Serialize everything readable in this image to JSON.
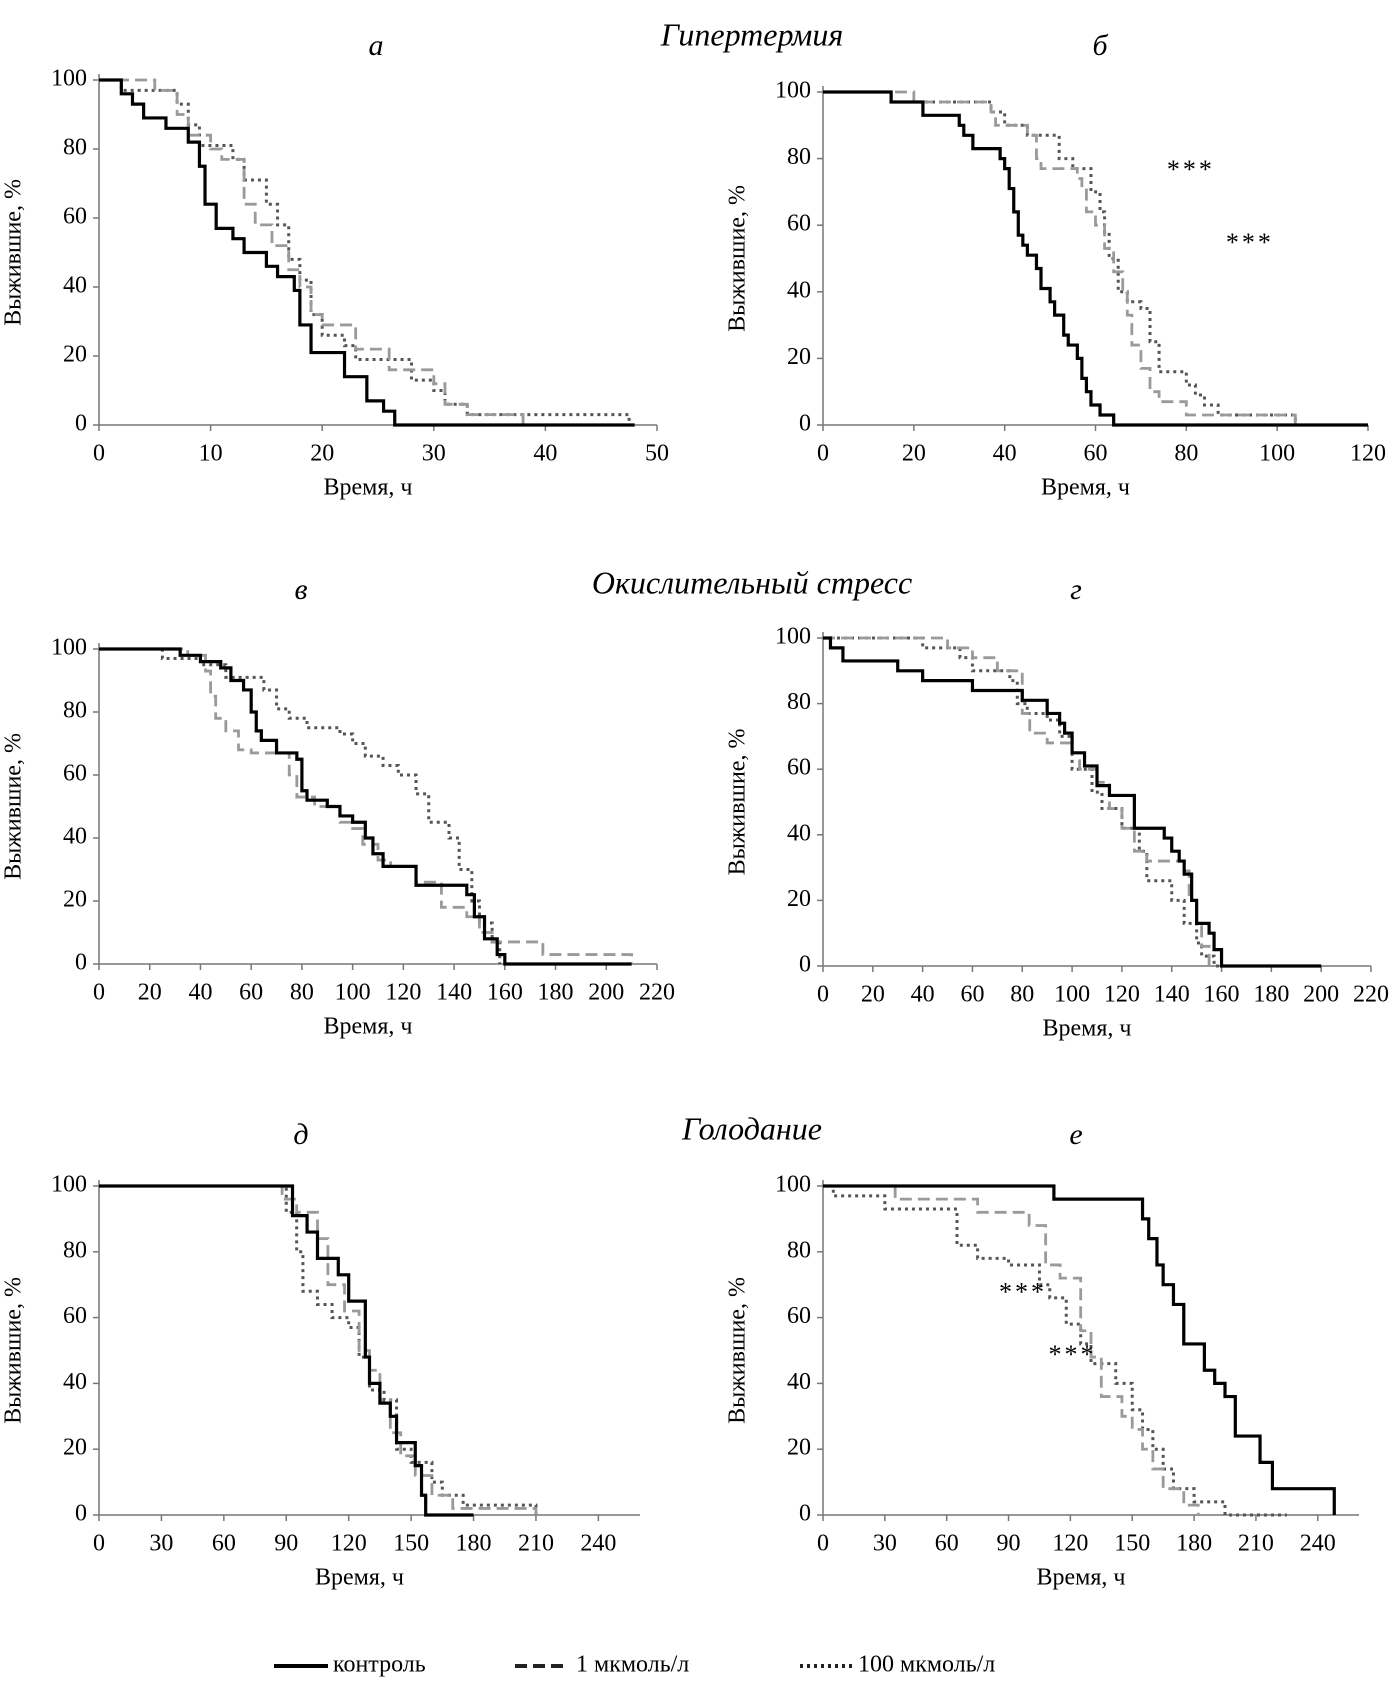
{
  "section_titles": [
    "Гипертермия",
    "Окислительный стресс",
    "Голодание"
  ],
  "chart_data": [
    {
      "type": "line",
      "step": true,
      "title": "а",
      "x_label": "Время, ч",
      "y_label": "Выжившие, %",
      "xlim": [
        0,
        50
      ],
      "ylim": [
        0,
        100
      ],
      "xticks": [
        0,
        10,
        20,
        30,
        40,
        50
      ],
      "yticks": [
        0,
        20,
        40,
        60,
        80,
        100
      ],
      "series": [
        {
          "name": "контроль",
          "color": "#000000",
          "dash": "solid",
          "x": [
            0,
            2,
            3,
            4,
            6,
            8,
            9,
            9.5,
            10.5,
            12,
            13,
            15,
            16,
            17.5,
            18,
            19,
            22,
            24,
            25.5,
            26.5,
            48
          ],
          "values": [
            100,
            96,
            93,
            89,
            86,
            82,
            75,
            64,
            57,
            54,
            50,
            46,
            43,
            39,
            29,
            21,
            14,
            7,
            4,
            0,
            0
          ]
        },
        {
          "name": "1 мкмоль/л",
          "color": "#9a9a9a",
          "dash": "dashed",
          "x": [
            0,
            5,
            7,
            8,
            10,
            11,
            13,
            14,
            15.5,
            17,
            18,
            19,
            20,
            23,
            26,
            30,
            31,
            33,
            38
          ],
          "values": [
            100,
            97,
            90,
            84,
            80,
            77,
            64,
            58,
            52,
            45,
            40,
            32,
            29,
            22,
            16,
            12,
            6,
            3,
            0
          ]
        },
        {
          "name": "100 мкмоль/л",
          "color": "#555555",
          "dash": "dotted",
          "x": [
            0,
            2,
            7,
            8,
            9,
            12,
            13,
            15,
            16,
            17,
            18,
            19,
            20,
            22,
            23,
            28,
            30,
            31,
            33,
            47.5
          ],
          "values": [
            100,
            97,
            93,
            87,
            81,
            77,
            71,
            64,
            58,
            48,
            42,
            32,
            26,
            23,
            19,
            13,
            10,
            6,
            3,
            0
          ]
        }
      ],
      "annotations": []
    },
    {
      "type": "line",
      "step": true,
      "title": "б",
      "x_label": "Время, ч",
      "y_label": "Выжившие, %",
      "xlim": [
        0,
        120
      ],
      "ylim": [
        0,
        100
      ],
      "xticks": [
        0,
        20,
        40,
        60,
        80,
        100,
        120
      ],
      "yticks": [
        0,
        20,
        40,
        60,
        80,
        100
      ],
      "series": [
        {
          "name": "контроль",
          "color": "#000000",
          "dash": "solid",
          "x": [
            0,
            15,
            22,
            30,
            31,
            33,
            39,
            40,
            41,
            42,
            43,
            44,
            45,
            47,
            48,
            50,
            51,
            53,
            54,
            56,
            57,
            58,
            59,
            61,
            64,
            120
          ],
          "values": [
            100,
            97,
            93,
            90,
            87,
            83,
            80,
            77,
            71,
            64,
            57,
            54,
            51,
            47,
            41,
            37,
            33,
            27,
            24,
            20,
            14,
            10,
            6,
            3,
            0,
            0
          ]
        },
        {
          "name": "1 мкмоль/л",
          "color": "#9a9a9a",
          "dash": "dashed",
          "x": [
            0,
            20,
            37,
            38,
            45,
            47,
            48,
            56,
            57,
            58,
            60,
            62,
            64,
            66,
            67,
            68,
            70,
            72,
            74,
            80,
            90,
            104
          ],
          "values": [
            100,
            97,
            94,
            90,
            87,
            80,
            77,
            74,
            71,
            64,
            60,
            53,
            46,
            40,
            33,
            24,
            17,
            10,
            7,
            3,
            3,
            0
          ]
        },
        {
          "name": "100 мкмоль/л",
          "color": "#555555",
          "dash": "dotted",
          "x": [
            0,
            15,
            37,
            40,
            45,
            52,
            55,
            59,
            61,
            62,
            63,
            65,
            67,
            70,
            72,
            74,
            80,
            82,
            84,
            87,
            104
          ],
          "values": [
            100,
            97,
            94,
            90,
            87,
            80,
            77,
            70,
            64,
            58,
            50,
            40,
            37,
            35,
            25,
            16,
            12,
            9,
            6,
            3,
            0
          ]
        }
      ],
      "annotations": [
        {
          "text": "***",
          "x": 81,
          "y": 76,
          "color": "#555555"
        },
        {
          "text": "***",
          "x": 94,
          "y": 54,
          "color": "#999999"
        }
      ]
    },
    {
      "type": "line",
      "step": true,
      "title": "в",
      "x_label": "Время, ч",
      "y_label": "Выжившие, %",
      "xlim": [
        0,
        220
      ],
      "ylim": [
        0,
        100
      ],
      "xticks": [
        0,
        20,
        40,
        60,
        80,
        100,
        120,
        140,
        160,
        180,
        200,
        220
      ],
      "yticks": [
        0,
        20,
        40,
        60,
        80,
        100
      ],
      "series": [
        {
          "name": "контроль",
          "color": "#000000",
          "dash": "solid",
          "x": [
            0,
            32,
            40,
            48,
            52,
            57,
            60,
            62,
            64,
            70,
            78,
            80,
            82,
            90,
            95,
            100,
            105,
            108,
            112,
            125,
            145,
            148,
            152,
            157,
            160,
            210
          ],
          "values": [
            100,
            98,
            96,
            94,
            90,
            87,
            80,
            74,
            71,
            67,
            65,
            55,
            52,
            50,
            47,
            45,
            40,
            35,
            31,
            25,
            22,
            15,
            8,
            3,
            0,
            0
          ]
        },
        {
          "name": "1 мкмоль/л",
          "color": "#9a9a9a",
          "dash": "dashed",
          "x": [
            0,
            35,
            42,
            44,
            46,
            50,
            55,
            60,
            75,
            78,
            85,
            95,
            100,
            104,
            110,
            115,
            125,
            135,
            145,
            150,
            155,
            175,
            210
          ],
          "values": [
            100,
            98,
            93,
            85,
            78,
            74,
            68,
            67,
            60,
            53,
            50,
            45,
            43,
            38,
            33,
            31,
            26,
            18,
            15,
            10,
            7,
            3,
            0
          ]
        },
        {
          "name": "100 мкмоль/л",
          "color": "#555555",
          "dash": "dotted",
          "x": [
            0,
            25,
            40,
            50,
            65,
            70,
            75,
            82,
            95,
            100,
            105,
            112,
            118,
            125,
            130,
            138,
            142,
            147,
            150,
            155,
            158
          ],
          "values": [
            100,
            97,
            95,
            91,
            87,
            81,
            78,
            75,
            73,
            70,
            66,
            63,
            60,
            54,
            45,
            40,
            30,
            20,
            13,
            7,
            0
          ]
        }
      ],
      "annotations": []
    },
    {
      "type": "line",
      "step": true,
      "title": "г",
      "x_label": "Время, ч",
      "y_label": "Выжившие, %",
      "xlim": [
        0,
        220
      ],
      "ylim": [
        0,
        100
      ],
      "xticks": [
        0,
        20,
        40,
        60,
        80,
        100,
        120,
        140,
        160,
        180,
        200,
        220
      ],
      "yticks": [
        0,
        20,
        40,
        60,
        80,
        100
      ],
      "series": [
        {
          "name": "контроль",
          "color": "#000000",
          "dash": "solid",
          "x": [
            0,
            3,
            8,
            30,
            40,
            60,
            80,
            90,
            95,
            97,
            100,
            105,
            110,
            115,
            125,
            137,
            140,
            143,
            145,
            148,
            150,
            155,
            157,
            160,
            200
          ],
          "values": [
            100,
            97,
            93,
            90,
            87,
            84,
            81,
            77,
            74,
            71,
            65,
            61,
            55,
            52,
            42,
            39,
            35,
            32,
            28,
            20,
            13,
            10,
            5,
            0,
            0
          ]
        },
        {
          "name": "1 мкмоль/л",
          "color": "#9a9a9a",
          "dash": "dashed",
          "x": [
            0,
            50,
            60,
            70,
            80,
            83,
            90,
            100,
            103,
            110,
            115,
            120,
            125,
            130,
            145,
            147,
            150,
            152,
            155
          ],
          "values": [
            100,
            97,
            94,
            90,
            77,
            71,
            68,
            65,
            60,
            56,
            48,
            42,
            35,
            32,
            29,
            20,
            12,
            6,
            0
          ]
        },
        {
          "name": "100 мкмоль/л",
          "color": "#555555",
          "dash": "dotted",
          "x": [
            0,
            40,
            55,
            60,
            75,
            78,
            82,
            90,
            95,
            100,
            108,
            112,
            120,
            127,
            130,
            140,
            145,
            150,
            152,
            157,
            200
          ],
          "values": [
            100,
            97,
            94,
            90,
            87,
            80,
            77,
            75,
            70,
            60,
            53,
            48,
            42,
            35,
            26,
            20,
            13,
            7,
            3,
            0,
            0
          ]
        }
      ],
      "annotations": []
    },
    {
      "type": "line",
      "step": true,
      "title": "д",
      "x_label": "Время, ч",
      "y_label": "Выжившие, %",
      "xlim": [
        0,
        260
      ],
      "ylim": [
        0,
        100
      ],
      "xticks": [
        0,
        30,
        60,
        90,
        120,
        150,
        180,
        210,
        240
      ],
      "yticks": [
        0,
        20,
        40,
        60,
        80,
        100
      ],
      "series": [
        {
          "name": "контроль",
          "color": "#000000",
          "dash": "solid",
          "x": [
            0,
            93,
            100,
            105,
            115,
            120,
            128,
            130,
            135,
            140,
            143,
            152,
            155,
            157,
            180
          ],
          "values": [
            100,
            91,
            86,
            78,
            73,
            65,
            48,
            40,
            34,
            30,
            22,
            15,
            6,
            0,
            0
          ]
        },
        {
          "name": "1 мкмоль/л",
          "color": "#9a9a9a",
          "dash": "dashed",
          "x": [
            0,
            88,
            95,
            105,
            110,
            118,
            125,
            130,
            135,
            140,
            145,
            152,
            160,
            170,
            210
          ],
          "values": [
            100,
            96,
            92,
            84,
            70,
            62,
            50,
            44,
            35,
            25,
            18,
            12,
            6,
            2,
            0
          ]
        },
        {
          "name": "100 мкмоль/л",
          "color": "#555555",
          "dash": "dotted",
          "x": [
            0,
            90,
            95,
            98,
            105,
            112,
            120,
            125,
            130,
            137,
            143,
            150,
            160,
            165,
            175,
            210
          ],
          "values": [
            100,
            92,
            80,
            68,
            64,
            60,
            57,
            48,
            38,
            35,
            20,
            16,
            10,
            6,
            3,
            0
          ]
        }
      ],
      "annotations": []
    },
    {
      "type": "line",
      "step": true,
      "title": "е",
      "x_label": "Время, ч",
      "y_label": "Выжившие, %",
      "xlim": [
        0,
        260
      ],
      "ylim": [
        0,
        100
      ],
      "xticks": [
        0,
        30,
        60,
        90,
        120,
        150,
        180,
        210,
        240
      ],
      "yticks": [
        0,
        20,
        40,
        60,
        80,
        100
      ],
      "series": [
        {
          "name": "контроль",
          "color": "#000000",
          "dash": "solid",
          "x": [
            0,
            112,
            155,
            158,
            162,
            165,
            170,
            175,
            185,
            190,
            195,
            200,
            212,
            218,
            248
          ],
          "values": [
            100,
            96,
            90,
            84,
            76,
            70,
            64,
            52,
            44,
            40,
            36,
            24,
            16,
            8,
            0
          ]
        },
        {
          "name": "1 мкмоль/л",
          "color": "#9a9a9a",
          "dash": "dashed",
          "x": [
            0,
            35,
            75,
            100,
            108,
            115,
            125,
            130,
            135,
            145,
            150,
            155,
            160,
            165,
            175,
            182
          ],
          "values": [
            100,
            96,
            92,
            88,
            76,
            72,
            56,
            48,
            36,
            30,
            26,
            20,
            14,
            8,
            3,
            0
          ]
        },
        {
          "name": "100 мкмоль/л",
          "color": "#555555",
          "dash": "dotted",
          "x": [
            0,
            5,
            30,
            65,
            75,
            90,
            105,
            110,
            118,
            125,
            130,
            142,
            150,
            155,
            160,
            165,
            170,
            180,
            195,
            225
          ],
          "values": [
            100,
            97,
            93,
            82,
            78,
            76,
            70,
            66,
            58,
            52,
            46,
            40,
            32,
            26,
            20,
            14,
            8,
            4,
            0,
            0
          ]
        }
      ],
      "annotations": [
        {
          "text": "***",
          "x": 97,
          "y": 67,
          "color": "#555555"
        },
        {
          "text": "***",
          "x": 121,
          "y": 48,
          "color": "#888888"
        }
      ]
    }
  ]
}
